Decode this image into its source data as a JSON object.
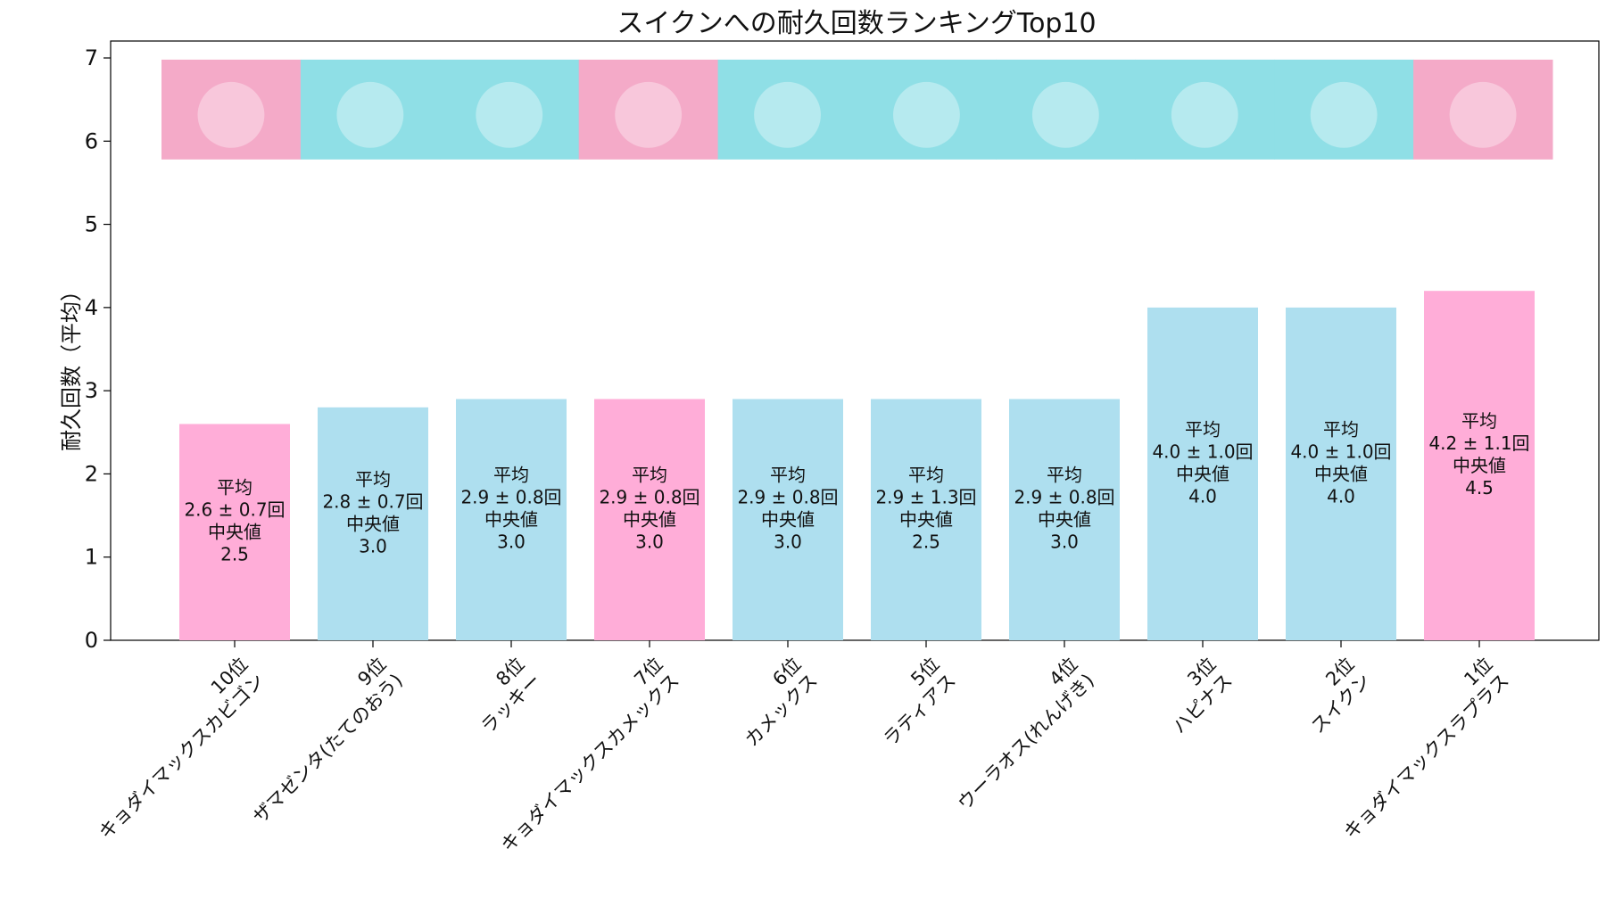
{
  "chart_data": {
    "type": "bar",
    "title": "スイクンへの耐久回数ランキングTop10",
    "ylabel": "耐久回数（平均）",
    "xlabel": "",
    "ylim": [
      0,
      7
    ],
    "yticks": [
      0,
      1,
      2,
      3,
      4,
      5,
      6,
      7
    ],
    "grid": false,
    "categories": [
      [
        "10位",
        "キョダイマックスカビゴン"
      ],
      [
        "9位",
        "ザマゼンタ(たてのおう)"
      ],
      [
        "8位",
        "ラッキー"
      ],
      [
        "7位",
        "キョダイマックスカメックス"
      ],
      [
        "6位",
        "カメックス"
      ],
      [
        "5位",
        "ラティアス"
      ],
      [
        "4位",
        "ウーラオス(れんげき)"
      ],
      [
        "3位",
        "ハピナス"
      ],
      [
        "2位",
        "スイクン"
      ],
      [
        "1位",
        "キョダイマックスラプラス"
      ]
    ],
    "values": [
      2.6,
      2.8,
      2.9,
      2.9,
      2.9,
      2.9,
      2.9,
      4.0,
      4.0,
      4.2
    ],
    "bar_colors": [
      "#ffadd8",
      "#aedfef",
      "#aedfef",
      "#ffadd8",
      "#aedfef",
      "#aedfef",
      "#aedfef",
      "#aedfef",
      "#aedfef",
      "#ffadd8"
    ],
    "bar_labels": [
      [
        "平均",
        "2.6 ± 0.7回",
        "",
        "中央値",
        "2.5"
      ],
      [
        "平均",
        "2.8 ± 0.7回",
        "",
        "中央値",
        "3.0"
      ],
      [
        "平均",
        "2.9 ± 0.8回",
        "",
        "中央値",
        "3.0"
      ],
      [
        "平均",
        "2.9 ± 0.8回",
        "",
        "中央値",
        "3.0"
      ],
      [
        "平均",
        "2.9 ± 0.8回",
        "",
        "中央値",
        "3.0"
      ],
      [
        "平均",
        "2.9 ± 1.3回",
        "",
        "中央値",
        "2.5"
      ],
      [
        "平均",
        "2.9 ± 0.8回",
        "",
        "中央値",
        "3.0"
      ],
      [
        "平均",
        "4.0 ± 1.0回",
        "",
        "中央値",
        "4.0"
      ],
      [
        "平均",
        "4.0 ± 1.0回",
        "",
        "中央値",
        "4.0"
      ],
      [
        "平均",
        "4.2 ± 1.1回",
        "",
        "中央値",
        "4.5"
      ]
    ],
    "image_strip": {
      "y_range": [
        5.78,
        6.98
      ],
      "tiles": [
        {
          "name": "kyodai-kabigon",
          "bg": "#f4aac8"
        },
        {
          "name": "zamazenta",
          "bg": "#8fdfe6"
        },
        {
          "name": "lucky",
          "bg": "#8fdfe6"
        },
        {
          "name": "kyodai-kamex",
          "bg": "#f4aac8"
        },
        {
          "name": "kamex",
          "bg": "#8fdfe6"
        },
        {
          "name": "latias",
          "bg": "#8fdfe6"
        },
        {
          "name": "urshifu",
          "bg": "#8fdfe6"
        },
        {
          "name": "happinas",
          "bg": "#8fdfe6"
        },
        {
          "name": "suicune",
          "bg": "#8fdfe6"
        },
        {
          "name": "kyodai-lapras",
          "bg": "#f4aac8"
        }
      ]
    }
  }
}
